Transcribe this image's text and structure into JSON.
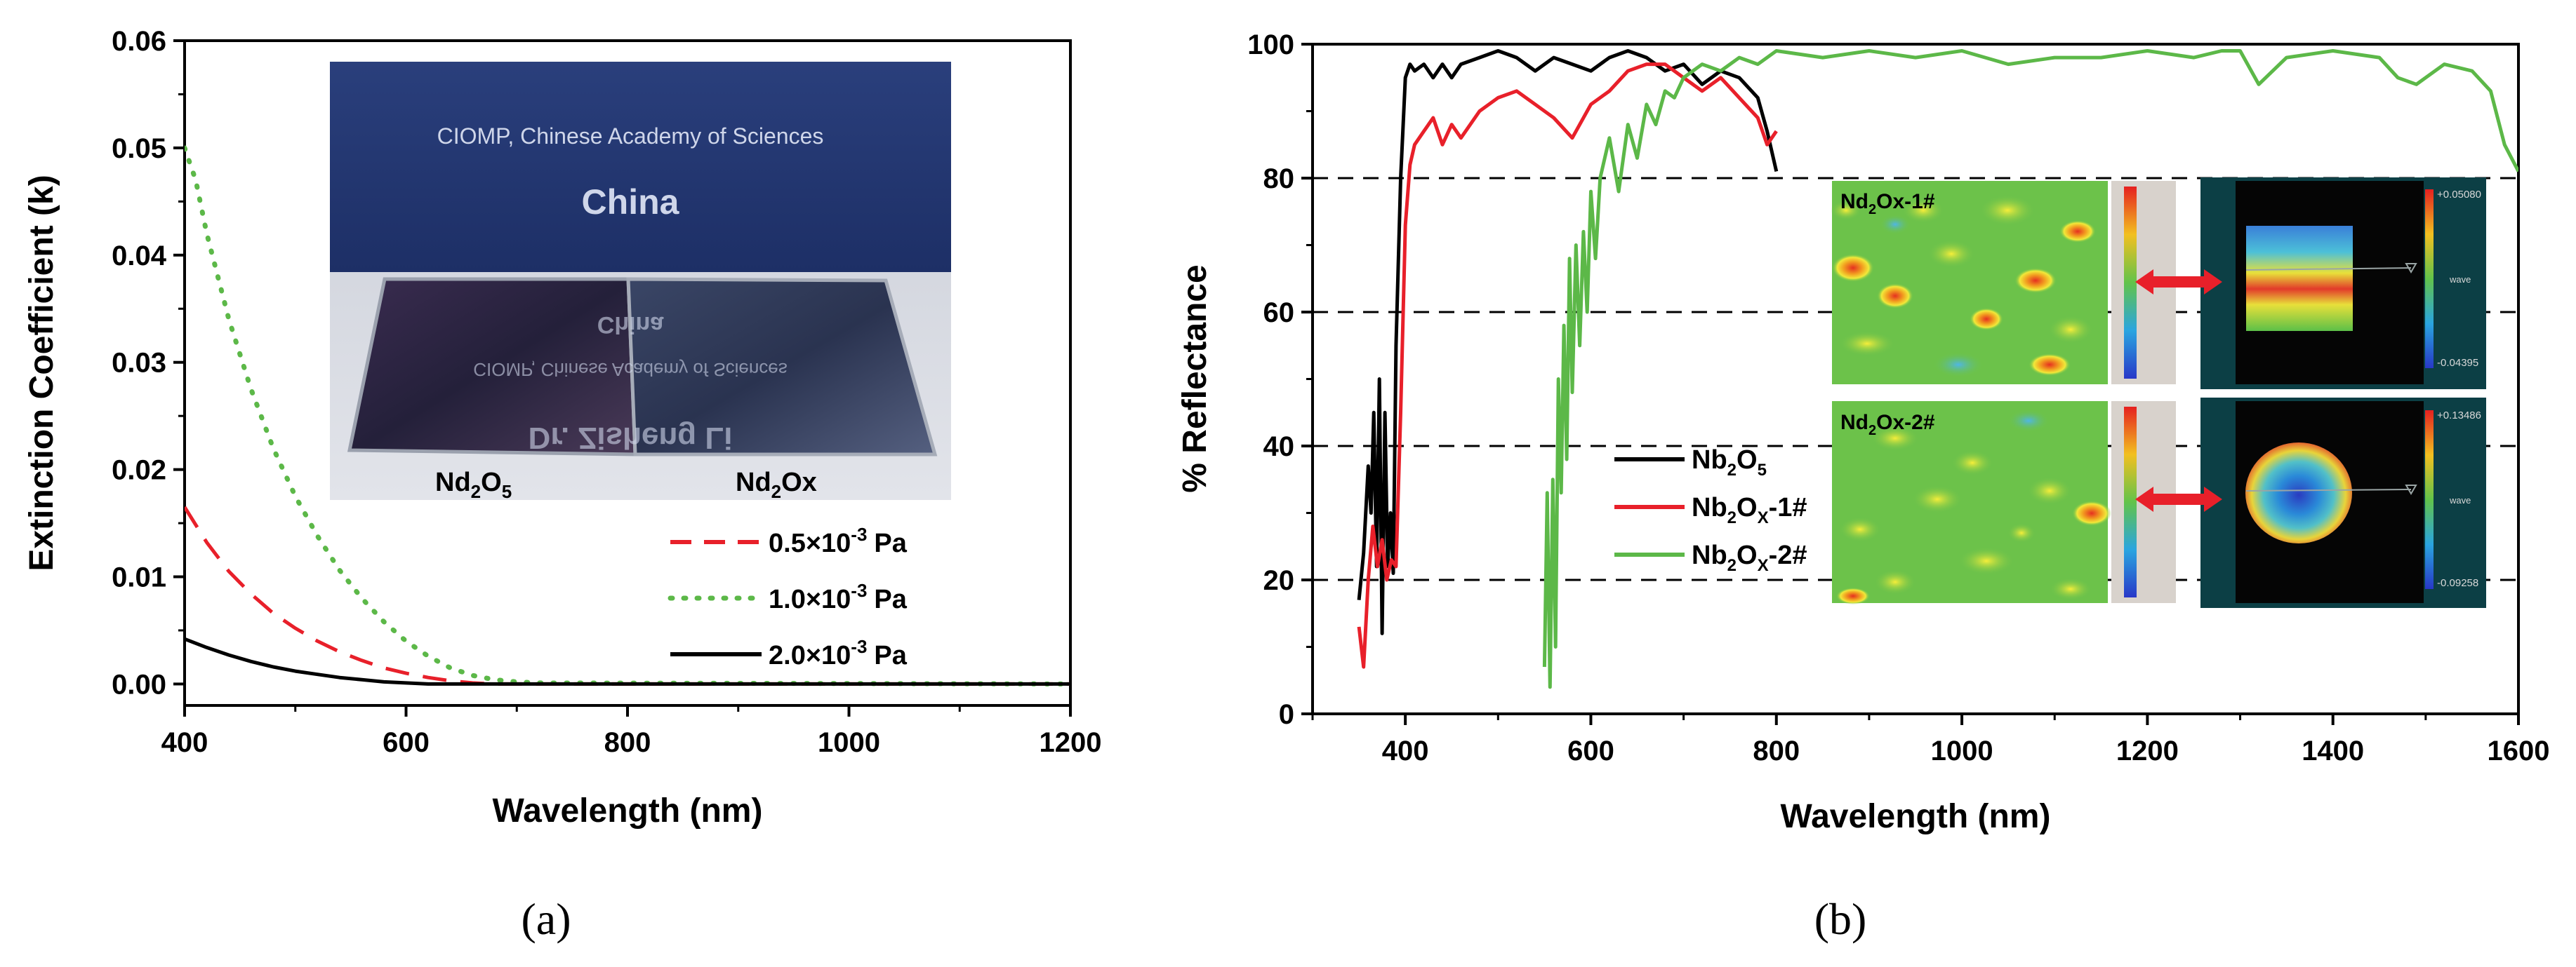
{
  "chart_data": [
    {
      "type": "line",
      "title": "",
      "panel_label": "(a)",
      "xlabel": "Wavelength (nm)",
      "ylabel": "Extinction Coefficient (k)",
      "xlim": [
        400,
        1200
      ],
      "ylim": [
        -0.002,
        0.06
      ],
      "xticks": [
        "400",
        "600",
        "800",
        "1000",
        "1200"
      ],
      "yticks": [
        "0.00",
        "0.01",
        "0.02",
        "0.03",
        "0.04",
        "0.05",
        "0.06"
      ],
      "legend_position": "bottom-right",
      "series": [
        {
          "name": "0.5×10-3 Pa",
          "legend_value": "0.5",
          "legend_unit": "Pa",
          "color": "#e8202a",
          "style": "dashed",
          "x": [
            400,
            420,
            440,
            460,
            480,
            500,
            520,
            540,
            560,
            580,
            600,
            620,
            640,
            660,
            680,
            700,
            1200
          ],
          "y": [
            0.0165,
            0.0132,
            0.0105,
            0.0084,
            0.0066,
            0.0052,
            0.004,
            0.003,
            0.0022,
            0.0015,
            0.001,
            0.0006,
            0.0003,
            0.0001,
            0.0,
            0.0,
            0.0
          ]
        },
        {
          "name": "1.0×10-3 Pa",
          "legend_value": "1.0",
          "legend_unit": "Pa",
          "color": "#5cb848",
          "style": "dotted",
          "x": [
            400,
            410,
            420,
            440,
            460,
            480,
            500,
            520,
            540,
            560,
            580,
            600,
            620,
            640,
            660,
            680,
            700,
            720,
            1200
          ],
          "y": [
            0.05,
            0.047,
            0.042,
            0.034,
            0.0275,
            0.022,
            0.0175,
            0.0138,
            0.0106,
            0.008,
            0.0058,
            0.004,
            0.0026,
            0.0015,
            0.0008,
            0.0004,
            0.0002,
            0.0001,
            0.0
          ]
        },
        {
          "name": "2.0×10-3 Pa",
          "legend_value": "2.0",
          "legend_unit": "Pa",
          "color": "#000000",
          "style": "solid",
          "x": [
            400,
            420,
            440,
            460,
            480,
            500,
            520,
            540,
            560,
            580,
            600,
            620,
            640,
            1200
          ],
          "y": [
            0.0042,
            0.0034,
            0.0027,
            0.0021,
            0.0016,
            0.0012,
            0.0009,
            0.0006,
            0.0004,
            0.0002,
            0.0001,
            0.0,
            0.0,
            0.0
          ]
        }
      ],
      "legend_multiplier": "×10",
      "legend_exponent": "-3",
      "inset_photo": {
        "line1": "CIOMP, Chinese Academy of Sciences",
        "line2": "China",
        "mirror1": "China",
        "mirror2": "CIOMP, Chinese Academy of Sciences",
        "mirror3": "Dr. Zisheng Li",
        "label_left_base": "Nd",
        "label_left_sub1": "2",
        "label_left_mid": "O",
        "label_left_sub2": "5",
        "label_right_base": "Nd",
        "label_right_sub1": "2",
        "label_right_tail": "Ox"
      }
    },
    {
      "type": "line",
      "title": "",
      "panel_label": "(b)",
      "xlabel": "Wavelength (nm)",
      "ylabel": "% Reflectance",
      "xlim": [
        300,
        1600
      ],
      "ylim": [
        0,
        100
      ],
      "xticks": [
        "400",
        "600",
        "800",
        "1000",
        "1200",
        "1400",
        "1600"
      ],
      "yticks": [
        "0",
        "20",
        "40",
        "60",
        "80",
        "100"
      ],
      "dashed_gridlines_at": [
        20,
        40,
        60,
        80
      ],
      "legend_position": "center-left",
      "series": [
        {
          "name": "Nb2O5",
          "legend_parts": [
            "Nb",
            "2",
            "O",
            "5"
          ],
          "color": "#000000",
          "x": [
            350,
            355,
            360,
            363,
            366,
            369,
            372,
            375,
            378,
            381,
            384,
            387,
            390,
            395,
            400,
            405,
            410,
            420,
            430,
            440,
            450,
            460,
            480,
            500,
            520,
            540,
            560,
            580,
            600,
            620,
            640,
            660,
            680,
            700,
            720,
            740,
            760,
            780,
            790,
            800
          ],
          "y": [
            17,
            24,
            37,
            30,
            45,
            22,
            50,
            12,
            45,
            22,
            30,
            21,
            55,
            80,
            95,
            97,
            96,
            97,
            95,
            97,
            95,
            97,
            98,
            99,
            98,
            96,
            98,
            97,
            96,
            98,
            99,
            98,
            96,
            97,
            94,
            96,
            95,
            92,
            87,
            81
          ]
        },
        {
          "name": "Nb2OX-1#",
          "legend_parts": [
            "Nb",
            "2",
            "O",
            "X",
            "-1#"
          ],
          "color": "#e8202a",
          "x": [
            350,
            355,
            360,
            365,
            370,
            375,
            380,
            385,
            390,
            395,
            400,
            405,
            410,
            420,
            430,
            440,
            450,
            460,
            480,
            500,
            520,
            540,
            560,
            580,
            600,
            620,
            640,
            660,
            680,
            700,
            720,
            740,
            760,
            780,
            790,
            800
          ],
          "y": [
            13,
            7,
            20,
            28,
            22,
            26,
            20,
            23,
            22,
            45,
            73,
            82,
            85,
            87,
            89,
            85,
            88,
            86,
            90,
            92,
            93,
            91,
            89,
            86,
            91,
            93,
            96,
            97,
            97,
            95,
            93,
            95,
            92,
            89,
            85,
            87
          ]
        },
        {
          "name": "Nb2OX-2#",
          "legend_parts": [
            "Nb",
            "2",
            "O",
            "X",
            "-2#"
          ],
          "color": "#5cb848",
          "x": [
            550,
            553,
            556,
            559,
            562,
            565,
            568,
            571,
            574,
            577,
            580,
            584,
            588,
            592,
            596,
            600,
            605,
            610,
            620,
            630,
            640,
            650,
            660,
            670,
            680,
            690,
            700,
            720,
            740,
            760,
            780,
            800,
            850,
            900,
            950,
            1000,
            1050,
            1100,
            1150,
            1200,
            1250,
            1280,
            1300,
            1320,
            1350,
            1400,
            1450,
            1470,
            1490,
            1520,
            1550,
            1570,
            1585,
            1600
          ],
          "y": [
            7,
            33,
            4,
            35,
            10,
            50,
            33,
            58,
            38,
            68,
            48,
            70,
            55,
            72,
            60,
            78,
            68,
            80,
            86,
            78,
            88,
            83,
            91,
            88,
            93,
            92,
            95,
            97,
            96,
            98,
            97,
            99,
            98,
            99,
            98,
            99,
            97,
            98,
            98,
            99,
            98,
            99,
            99,
            94,
            98,
            99,
            98,
            95,
            94,
            97,
            96,
            93,
            85,
            81
          ]
        }
      ],
      "inset_maps": [
        {
          "label_base": "Nd",
          "label_sub": "2",
          "label_tail": "Ox-1#",
          "scale_max": "+0.05080",
          "scale_min": "-0.04395",
          "scale_mid": "wave"
        },
        {
          "label_base": "Nd",
          "label_sub": "2",
          "label_tail": "Ox-2#",
          "scale_max": "+0.13486",
          "scale_min": "-0.09258",
          "scale_mid": "wave"
        }
      ]
    }
  ]
}
